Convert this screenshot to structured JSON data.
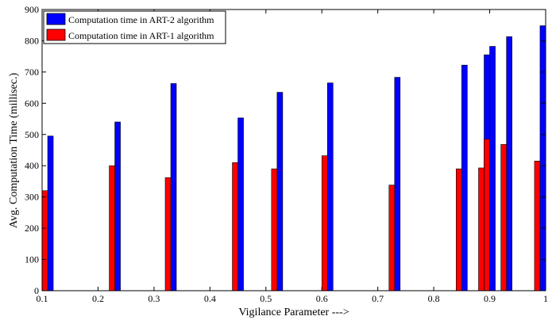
{
  "chart_data": {
    "type": "bar",
    "title": "",
    "xlabel": "Vigilance Parameter --->",
    "ylabel": "Avg. Computation Time (millisec.)",
    "xlim": [
      0.1,
      1.0
    ],
    "ylim": [
      0,
      900
    ],
    "xticks": [
      {
        "value": 0.1,
        "label": "0.1"
      },
      {
        "value": 0.2,
        "label": "0.2"
      },
      {
        "value": 0.3,
        "label": "0.3"
      },
      {
        "value": 0.4,
        "label": "0.4"
      },
      {
        "value": 0.5,
        "label": "0.5"
      },
      {
        "value": 0.6,
        "label": "0.6"
      },
      {
        "value": 0.7,
        "label": "0.7"
      },
      {
        "value": 0.8,
        "label": "0.8"
      },
      {
        "value": 0.9,
        "label": "0.9"
      },
      {
        "value": 1.0,
        "label": "1"
      }
    ],
    "yticks": [
      {
        "value": 0,
        "label": "0"
      },
      {
        "value": 100,
        "label": "100"
      },
      {
        "value": 200,
        "label": "200"
      },
      {
        "value": 300,
        "label": "300"
      },
      {
        "value": 400,
        "label": "400"
      },
      {
        "value": 500,
        "label": "500"
      },
      {
        "value": 600,
        "label": "600"
      },
      {
        "value": 700,
        "label": "700"
      },
      {
        "value": 800,
        "label": "800"
      },
      {
        "value": 900,
        "label": "900"
      }
    ],
    "x": [
      0.11,
      0.23,
      0.33,
      0.45,
      0.52,
      0.61,
      0.73,
      0.85,
      0.89,
      0.9,
      0.93,
      0.99
    ],
    "series": [
      {
        "name": "Computation time in ART-2 algorithm",
        "color": "#0000ff",
        "values": [
          495,
          540,
          663,
          553,
          635,
          665,
          683,
          722,
          755,
          782,
          813,
          848
        ]
      },
      {
        "name": "Computation time in ART-1 algorithm",
        "color": "#ff0000",
        "values": [
          320,
          400,
          362,
          410,
          390,
          432,
          338,
          390,
          393,
          485,
          468,
          415
        ]
      }
    ],
    "legend_position": "top-left"
  }
}
